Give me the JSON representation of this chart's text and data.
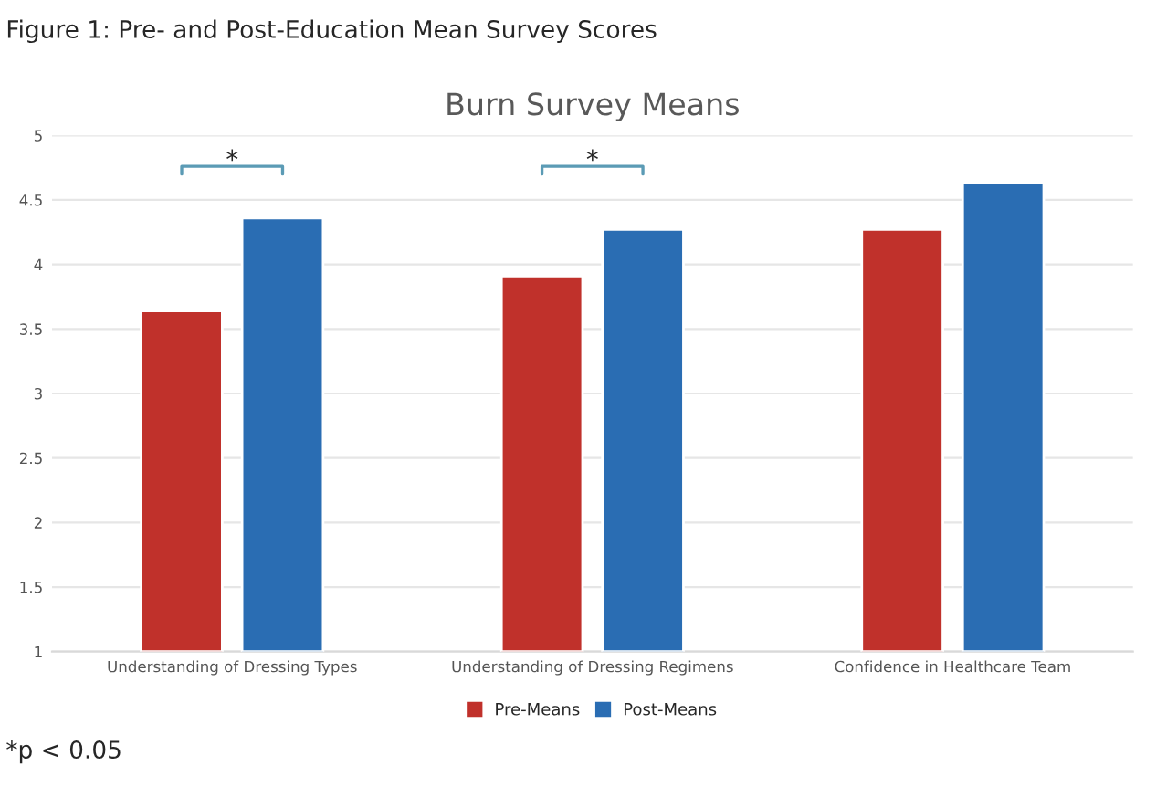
{
  "chart_data": {
    "type": "bar",
    "title": "Figure 1: Pre- and Post-Education Mean Survey Scores",
    "subtitle": "Burn Survey Means",
    "categories": [
      "Understanding of Dressing Types",
      "Understanding of Dressing Regimens",
      "Confidence in Healthcare Team"
    ],
    "series": [
      {
        "name": "Pre-Means",
        "color": "#c0312b",
        "values": [
          3.64,
          3.91,
          4.27
        ]
      },
      {
        "name": "Post-Means",
        "color": "#2a6db3",
        "values": [
          4.36,
          4.27,
          4.63
        ]
      }
    ],
    "ylim": [
      1,
      5
    ],
    "yticks": [
      1,
      1.5,
      2,
      2.5,
      3,
      3.5,
      4,
      4.5,
      5
    ],
    "grid": "y",
    "legend": "bottom",
    "annotations": [
      "*",
      "*",
      "*p < 0.05"
    ]
  }
}
